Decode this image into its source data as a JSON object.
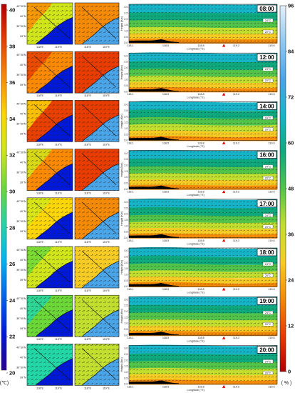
{
  "colors": {
    "temp_scale": [
      "#2a0096",
      "#0018d8",
      "#0062f0",
      "#00b2f4",
      "#22d6a6",
      "#6cd838",
      "#d0e61a",
      "#fcd606",
      "#fb8a02",
      "#e84000",
      "#b40000"
    ],
    "rh_scale": [
      "#b40000",
      "#e83c00",
      "#f48a06",
      "#f6cc24",
      "#c2de2e",
      "#52c44a",
      "#0eaa7e",
      "#16b4c8",
      "#4aa4e8",
      "#8ec8f2",
      "#e2f0fc"
    ],
    "sea": "#ffffff",
    "marker": "#e00000"
  },
  "colorbars": {
    "temperature": {
      "ticks": [
        "40",
        "38",
        "36",
        "34",
        "32",
        "30",
        "28",
        "26",
        "24",
        "22",
        "20"
      ],
      "unit": "(℃)"
    },
    "humidity": {
      "ticks": [
        "96",
        "84",
        "72",
        "60",
        "48",
        "36",
        "24",
        "12",
        "0"
      ],
      "unit": "( % )"
    }
  },
  "map_labels": {
    "lat": [
      "40°30'N",
      "40°N",
      "39°30'N",
      "39°N"
    ],
    "lon": [
      "118°E",
      "119°E"
    ]
  },
  "cross_section": {
    "ylabel": "Height (Km)",
    "xlabel": "Longitude (°E)",
    "yticks": [
      "3.0",
      "2.5",
      "2.0",
      "1.5",
      "1.0",
      "0.5",
      "0.0"
    ],
    "xticks": [
      "118.1",
      "118.5",
      "118.8",
      "119.2",
      "119.6"
    ],
    "isotherms": [
      "24°C",
      "20°C"
    ]
  },
  "chart_data": [
    {
      "type": "heatmap",
      "title": "",
      "rows": [
        "08:00",
        "12:00",
        "14:00",
        "16:00",
        "17:00",
        "18:00",
        "19:00",
        "20:00"
      ],
      "panels_per_row": [
        "temperature map",
        "relative humidity map",
        "vertical cross-section"
      ],
      "temperature_range": [
        20,
        40
      ],
      "temperature_unit": "℃",
      "humidity_range": [
        0,
        96
      ],
      "humidity_unit": "%",
      "cross_section_x_range": [
        118.1,
        119.6
      ],
      "cross_section_y_range": [
        0,
        3.5
      ]
    }
  ]
}
